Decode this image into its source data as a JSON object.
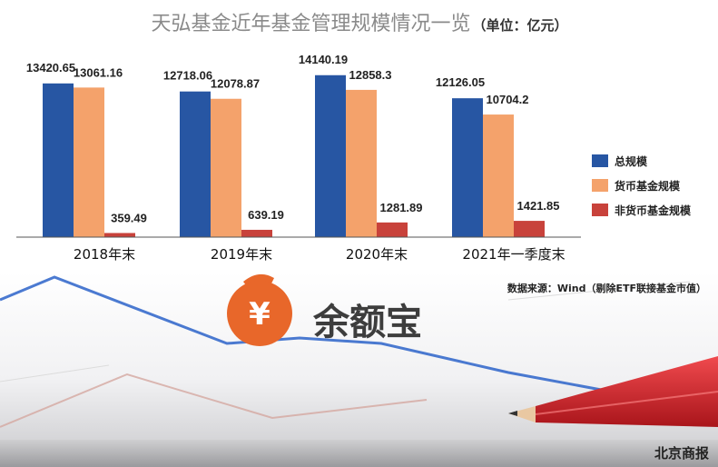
{
  "title": "天弘基金近年基金管理规模情况一览",
  "unit": "（单位：亿元）",
  "source": "数据来源：Wind（剔除ETF联接基金市值）",
  "brand": "北京商报",
  "logo": {
    "symbol": "¥",
    "text": "余额宝"
  },
  "colors": {
    "total": "#2756a3",
    "monetary": "#f4a26b",
    "non_monetary": "#c8423b",
    "logo_orange": "#e8672a",
    "deco_line": "#2c63c9",
    "pencil_red": "#d9262c"
  },
  "chart_data": {
    "type": "bar",
    "title": "天弘基金近年基金管理规模情况一览",
    "ylabel": "",
    "xlabel": "",
    "ylim": [
      0,
      14200
    ],
    "grid": false,
    "legend_position": "right",
    "categories": [
      "2018年末",
      "2019年末",
      "2020年末",
      "2021年一季度末"
    ],
    "series": [
      {
        "name": "总规模",
        "values": [
          13420.65,
          12718.06,
          14140.19,
          12126.05
        ],
        "labels": [
          "13420.65",
          "12718.06",
          "14140.19",
          "12126.05"
        ]
      },
      {
        "name": "货币基金规模",
        "values": [
          13061.16,
          12078.87,
          12858.3,
          10704.2
        ],
        "labels": [
          "13061.16",
          "12078.87",
          "12858.3",
          "10704.2"
        ]
      },
      {
        "name": "非货币基金规模",
        "values": [
          359.49,
          639.19,
          1281.89,
          1421.85
        ],
        "labels": [
          "359.49",
          "639.19",
          "1281.89",
          "1421.85"
        ]
      }
    ]
  }
}
